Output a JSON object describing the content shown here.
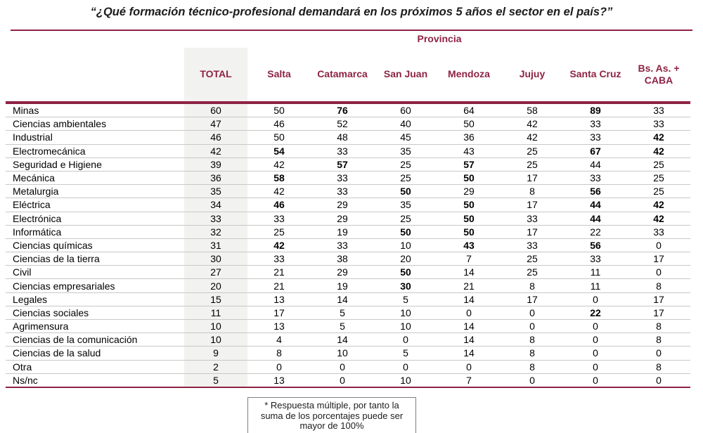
{
  "title": "“¿Qué formación técnico-profesional demandará en los próximos 5 años el sector en el país?”",
  "colors": {
    "accent_maroon": "#8E2344",
    "total_column_shade": "#F2F2F0",
    "gridline": "#C8C8C8",
    "footnote_border": "#808080"
  },
  "chart_data": {
    "type": "table",
    "group_header": "Provincia",
    "columns": [
      "TOTAL",
      "Salta",
      "Catamarca",
      "San Juan",
      "Mendoza",
      "Jujuy",
      "Santa Cruz",
      "Bs. As. + CABA"
    ],
    "rows": [
      {
        "label": "Minas",
        "values": [
          60,
          50,
          76,
          60,
          64,
          58,
          89,
          33
        ],
        "bold": [
          2,
          6
        ]
      },
      {
        "label": "Ciencias ambientales",
        "values": [
          47,
          46,
          52,
          40,
          50,
          42,
          33,
          33
        ],
        "bold": []
      },
      {
        "label": "Industrial",
        "values": [
          46,
          50,
          48,
          45,
          36,
          42,
          33,
          42
        ],
        "bold": [
          7
        ]
      },
      {
        "label": "Electromecánica",
        "values": [
          42,
          54,
          33,
          35,
          43,
          25,
          67,
          42
        ],
        "bold": [
          1,
          6,
          7
        ]
      },
      {
        "label": "Seguridad e Higiene",
        "values": [
          39,
          42,
          57,
          25,
          57,
          25,
          44,
          25
        ],
        "bold": [
          2,
          4
        ]
      },
      {
        "label": "Mecánica",
        "values": [
          36,
          58,
          33,
          25,
          50,
          17,
          33,
          25
        ],
        "bold": [
          1,
          4
        ]
      },
      {
        "label": "Metalurgia",
        "values": [
          35,
          42,
          33,
          50,
          29,
          8,
          56,
          25
        ],
        "bold": [
          3,
          6
        ]
      },
      {
        "label": "Eléctrica",
        "values": [
          34,
          46,
          29,
          35,
          50,
          17,
          44,
          42
        ],
        "bold": [
          1,
          4,
          6,
          7
        ]
      },
      {
        "label": "Electrónica",
        "values": [
          33,
          33,
          29,
          25,
          50,
          33,
          44,
          42
        ],
        "bold": [
          4,
          6,
          7
        ]
      },
      {
        "label": "Informática",
        "values": [
          32,
          25,
          19,
          50,
          50,
          17,
          22,
          33
        ],
        "bold": [
          3,
          4
        ]
      },
      {
        "label": "Ciencias químicas",
        "values": [
          31,
          42,
          33,
          10,
          43,
          33,
          56,
          0
        ],
        "bold": [
          1,
          4,
          6
        ]
      },
      {
        "label": "Ciencias de la tierra",
        "values": [
          30,
          33,
          38,
          20,
          7,
          25,
          33,
          17
        ],
        "bold": []
      },
      {
        "label": "Civil",
        "values": [
          27,
          21,
          29,
          50,
          14,
          25,
          11,
          0
        ],
        "bold": [
          3
        ]
      },
      {
        "label": "Ciencias empresariales",
        "values": [
          20,
          21,
          19,
          30,
          21,
          8,
          11,
          8
        ],
        "bold": [
          3
        ]
      },
      {
        "label": "Legales",
        "values": [
          15,
          13,
          14,
          5,
          14,
          17,
          0,
          17
        ],
        "bold": []
      },
      {
        "label": "Ciencias sociales",
        "values": [
          11,
          17,
          5,
          10,
          0,
          0,
          22,
          17
        ],
        "bold": [
          6
        ]
      },
      {
        "label": "Agrimensura",
        "values": [
          10,
          13,
          5,
          10,
          14,
          0,
          0,
          8
        ],
        "bold": []
      },
      {
        "label": "Ciencias de la comunicación",
        "values": [
          10,
          4,
          14,
          0,
          14,
          8,
          0,
          8
        ],
        "bold": []
      },
      {
        "label": "Ciencias de la salud",
        "values": [
          9,
          8,
          10,
          5,
          14,
          8,
          0,
          0
        ],
        "bold": []
      },
      {
        "label": "Otra",
        "values": [
          2,
          0,
          0,
          0,
          0,
          8,
          0,
          8
        ],
        "bold": []
      },
      {
        "label": "Ns/nc",
        "values": [
          5,
          13,
          0,
          10,
          7,
          0,
          0,
          0
        ],
        "bold": []
      }
    ],
    "footnote_lines": [
      "* Respuesta múltiple, por tanto la",
      "suma de los porcentajes puede ser",
      "mayor de 100%"
    ]
  }
}
